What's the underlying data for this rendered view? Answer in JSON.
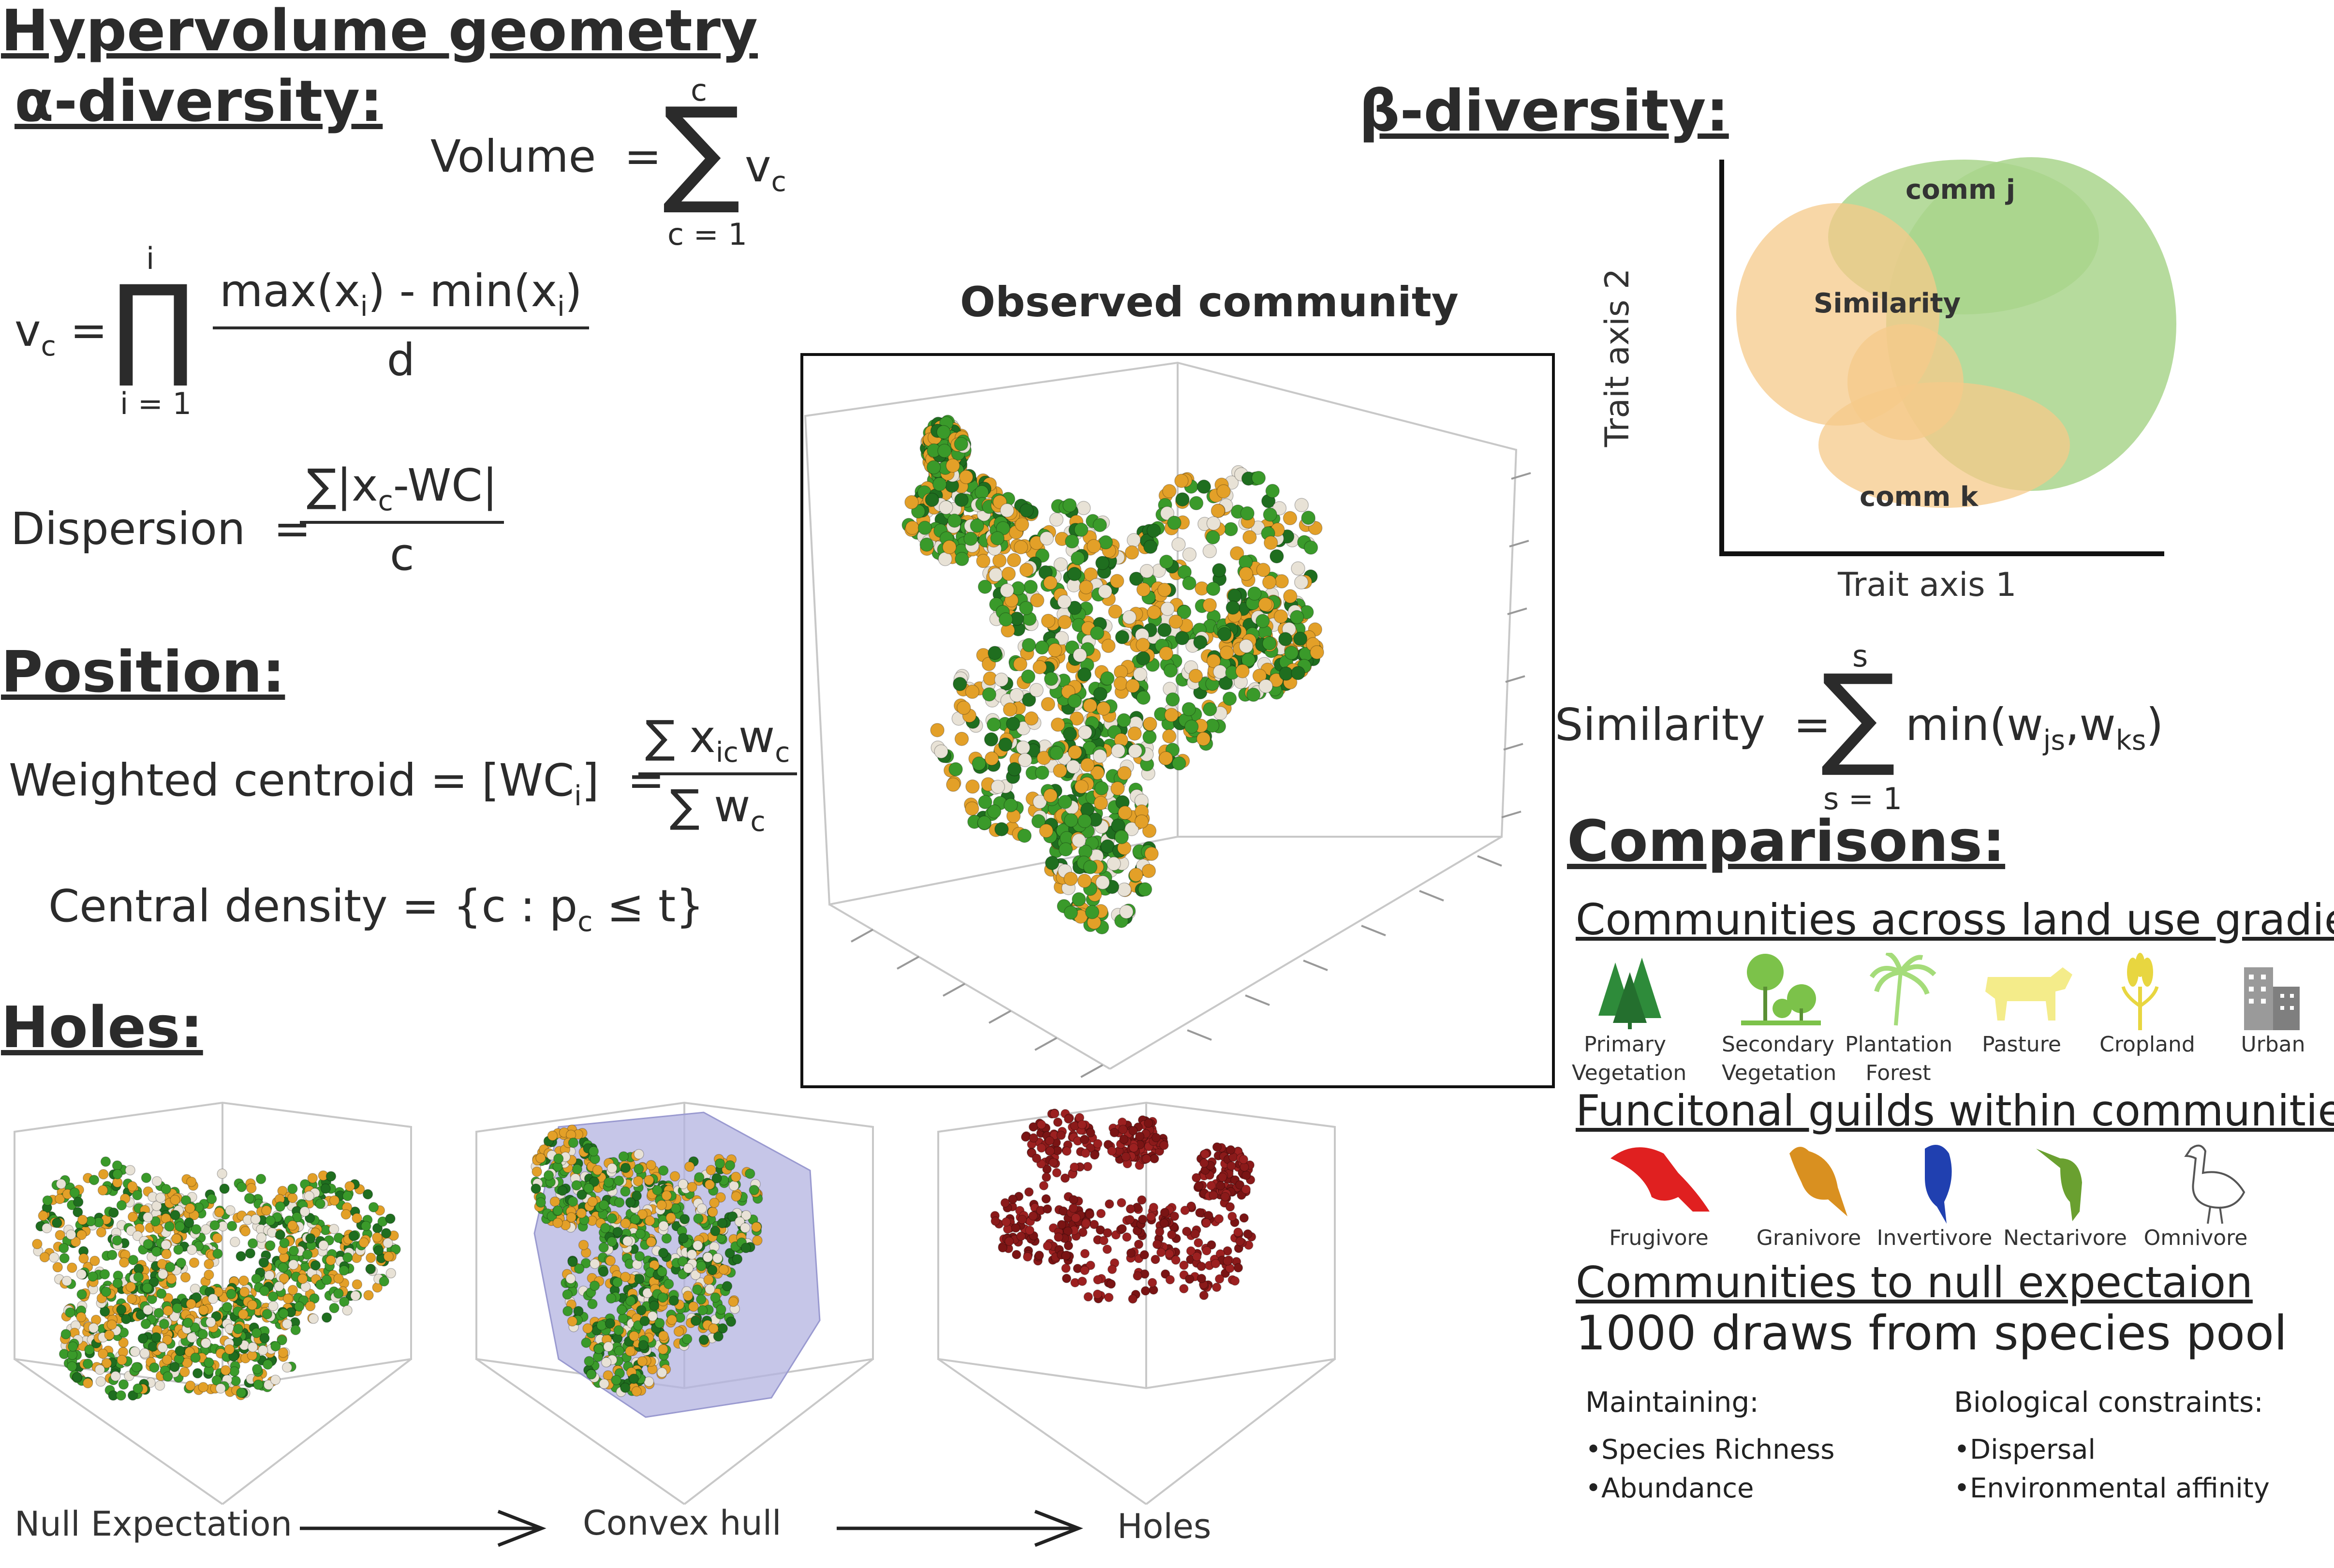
{
  "title": "Hypervolume  geometry",
  "alpha": {
    "heading": "α-diversity:",
    "volume_lhs": "Volume",
    "volume_eq": "=",
    "sum_top": "c",
    "sum_bottom": "c = 1",
    "volume_term": "v",
    "volume_term_sub": "c",
    "vc_lhs": "v",
    "vc_lhs_sub": "c",
    "prod_top": "i",
    "prod_bottom": "i = 1",
    "vc_num": "max(x",
    "vc_num_mid": ") - min(x",
    "vc_num_end": ")",
    "vc_num_sub": "i",
    "vc_den": "d",
    "dispersion_lhs": "Dispersion",
    "dispersion_num": "∑|x",
    "dispersion_num_sub": "c",
    "dispersion_num_end": "-WC|",
    "dispersion_den": "c"
  },
  "position": {
    "heading": "Position:",
    "centroid_lhs": "Weighted centroid = [WC",
    "centroid_lhs_sub": "i",
    "centroid_lhs_end": "]",
    "centroid_num": "∑ x",
    "centroid_num_sub": "ic",
    "centroid_num_end": "w",
    "centroid_num_sub2": "c",
    "centroid_den": "∑ w",
    "centroid_den_sub": "c",
    "central_density": "Central density = {c : p",
    "central_density_sub": "c",
    "central_density_end": " ≤ t}"
  },
  "holes": {
    "heading": "Holes:",
    "captions": [
      "Null Expectation",
      "Convex hull",
      "Holes"
    ]
  },
  "observed": {
    "title": "Observed community"
  },
  "beta": {
    "heading": "β-diversity:",
    "x_axis": "Trait axis 1",
    "y_axis": "Trait axis 2",
    "comm_j": "comm j",
    "comm_k": "comm k",
    "similarity_label": "Similarity",
    "sim_lhs": "Similarity",
    "sim_top": "s",
    "sim_bottom": "s = 1",
    "sim_rhs": "min(w",
    "sim_rhs_sub1": "js",
    "sim_rhs_mid": ",w",
    "sim_rhs_sub2": "ks",
    "sim_rhs_end": ")"
  },
  "comparisons": {
    "heading": "Comparisons:",
    "land_use_title": "Communities across land use gradient",
    "land_use": [
      {
        "line1": "Primary",
        "line2": "Vegetation",
        "icon": "conifer-forest-icon",
        "color": "#2e8b3a"
      },
      {
        "line1": "Secondary",
        "line2": "Vegetation",
        "icon": "deciduous-trees-icon",
        "color": "#7cc24a"
      },
      {
        "line1": "Plantation",
        "line2": "Forest",
        "icon": "palm-trees-icon",
        "color": "#a5dc7a"
      },
      {
        "line1": "Pasture",
        "line2": "",
        "icon": "cow-icon",
        "color": "#f4ec8a"
      },
      {
        "line1": "Cropland",
        "line2": "",
        "icon": "crop-icon",
        "color": "#e8d640"
      },
      {
        "line1": "Urban",
        "line2": "",
        "icon": "buildings-icon",
        "color": "#9a9a9a"
      }
    ],
    "guilds_title": "Funcitonal guilds within communities",
    "guilds": [
      {
        "label": "Frugivore",
        "icon": "toucan-icon",
        "color": "#e02020"
      },
      {
        "label": "Granivore",
        "icon": "finch-icon",
        "color": "#d99020"
      },
      {
        "label": "Invertivore",
        "icon": "bluebird-icon",
        "color": "#2040b0"
      },
      {
        "label": "Nectarivore",
        "icon": "hummingbird-icon",
        "color": "#6aa030"
      },
      {
        "label": "Omnivore",
        "icon": "goose-icon",
        "color": "#ffffff"
      }
    ],
    "null_title": "Communities to null expectaion",
    "draws": "1000 draws from species pool",
    "maintaining_title": "Maintaining:",
    "maintaining": [
      "•Species Richness",
      "•Abundance"
    ],
    "constraints_title": "Biological constraints:",
    "constraints": [
      "•Dispersal",
      "•Environmental affinity"
    ]
  },
  "colors": {
    "dot_green": "#3a9a2a",
    "dot_dark_green": "#1f6e1f",
    "dot_orange": "#e3a028",
    "dot_white": "#e8e2d6",
    "hole_red": "#8b1a1a",
    "comm_j_fill": "#a9d58c",
    "comm_k_fill": "#f6c98a",
    "hull_fill": "#b3b3e0"
  }
}
